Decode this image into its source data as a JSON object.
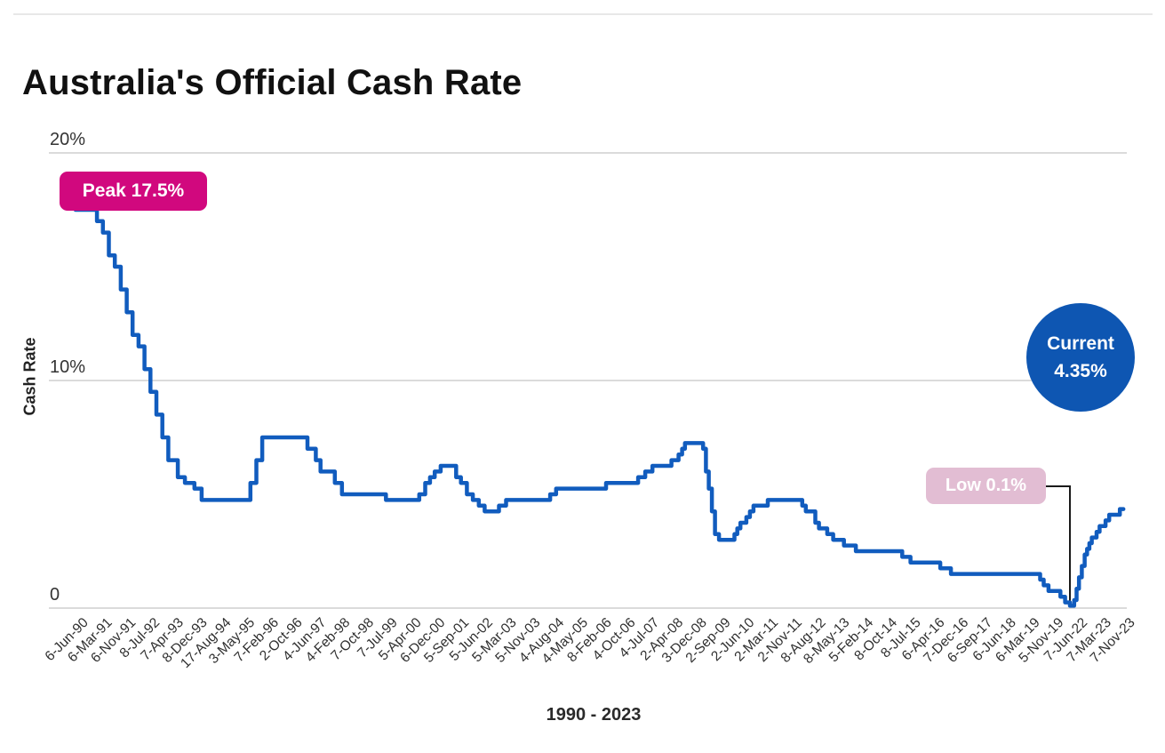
{
  "header": {
    "title": "Australia's Official Cash Rate"
  },
  "chart_data": {
    "type": "line",
    "title": "Australia's Official Cash Rate",
    "xlabel": "1990 - 2023",
    "ylabel": "Cash Rate",
    "ylim": [
      0,
      20
    ],
    "grid": "horizontal",
    "legend": "none",
    "line_color": "#115CBE",
    "gridline_color": "#DBDBDB",
    "yticks": [
      {
        "v": 20,
        "label": "20%"
      },
      {
        "v": 10,
        "label": "10%"
      },
      {
        "v": 0,
        "label": "0"
      }
    ],
    "x_tick_labels": [
      "6-Jun-90",
      "6-Mar-91",
      "6-Nov-91",
      "8-Jul-92",
      "7-Apr-93",
      "8-Dec-93",
      "17-Aug-94",
      "3-May-95",
      "7-Feb-96",
      "2-Oct-96",
      "4-Jun-97",
      "4-Feb-98",
      "7-Oct-98",
      "7-Jul-99",
      "5-Apr-00",
      "6-Dec-00",
      "5-Sep-01",
      "5-Jun-02",
      "5-Mar-03",
      "5-Nov-03",
      "4-Aug-04",
      "4-May-05",
      "8-Feb-06",
      "4-Oct-06",
      "4-Jul-07",
      "2-Apr-08",
      "3-Dec-08",
      "2-Sep-09",
      "2-Jun-10",
      "2-Mar-11",
      "2-Nov-11",
      "8-Aug-12",
      "8-May-13",
      "5-Feb-14",
      "8-Oct-14",
      "8-Jul-15",
      "6-Apr-16",
      "7-Dec-16",
      "6-Sep-17",
      "6-Jun-18",
      "6-Mar-19",
      "5-Nov-19",
      "7-Jun-22",
      "7-Mar-23",
      "7-Nov-23"
    ],
    "x_units": "x-axis tick index (fractional position along date axis)",
    "y_units": "cash rate, percent",
    "points": [
      [
        0,
        17.5
      ],
      [
        0.9,
        17.0
      ],
      [
        1.15,
        16.5
      ],
      [
        1.4,
        15.5
      ],
      [
        1.65,
        15.0
      ],
      [
        1.9,
        14.0
      ],
      [
        2.15,
        13.0
      ],
      [
        2.4,
        12.0
      ],
      [
        2.65,
        11.5
      ],
      [
        2.9,
        10.5
      ],
      [
        3.15,
        9.5
      ],
      [
        3.4,
        8.5
      ],
      [
        3.65,
        7.5
      ],
      [
        3.9,
        6.5
      ],
      [
        4.3,
        5.75
      ],
      [
        4.6,
        5.5
      ],
      [
        5.0,
        5.25
      ],
      [
        5.3,
        4.75
      ],
      [
        7.35,
        5.5
      ],
      [
        7.6,
        6.5
      ],
      [
        7.85,
        7.5
      ],
      [
        9.75,
        7.0
      ],
      [
        10.1,
        6.5
      ],
      [
        10.3,
        6.0
      ],
      [
        10.9,
        5.5
      ],
      [
        11.2,
        5.0
      ],
      [
        13.05,
        4.75
      ],
      [
        14.45,
        5.0
      ],
      [
        14.7,
        5.5
      ],
      [
        14.9,
        5.75
      ],
      [
        15.1,
        6.0
      ],
      [
        15.35,
        6.25
      ],
      [
        16.0,
        5.75
      ],
      [
        16.2,
        5.5
      ],
      [
        16.45,
        5.0
      ],
      [
        16.7,
        4.75
      ],
      [
        16.95,
        4.5
      ],
      [
        17.2,
        4.25
      ],
      [
        17.8,
        4.5
      ],
      [
        18.1,
        4.75
      ],
      [
        19.95,
        5.0
      ],
      [
        20.2,
        5.25
      ],
      [
        22.3,
        5.5
      ],
      [
        23.65,
        5.75
      ],
      [
        23.95,
        6.0
      ],
      [
        24.25,
        6.25
      ],
      [
        25.05,
        6.5
      ],
      [
        25.35,
        6.75
      ],
      [
        25.5,
        7.0
      ],
      [
        25.62,
        7.25
      ],
      [
        26.38,
        7.0
      ],
      [
        26.5,
        6.0
      ],
      [
        26.62,
        5.25
      ],
      [
        26.75,
        4.25
      ],
      [
        26.88,
        3.25
      ],
      [
        27.05,
        3.0
      ],
      [
        27.7,
        3.25
      ],
      [
        27.82,
        3.5
      ],
      [
        27.95,
        3.75
      ],
      [
        28.2,
        4.0
      ],
      [
        28.35,
        4.25
      ],
      [
        28.5,
        4.5
      ],
      [
        29.1,
        4.75
      ],
      [
        30.55,
        4.5
      ],
      [
        30.7,
        4.25
      ],
      [
        31.1,
        3.75
      ],
      [
        31.25,
        3.5
      ],
      [
        31.6,
        3.25
      ],
      [
        31.85,
        3.0
      ],
      [
        32.3,
        2.75
      ],
      [
        32.8,
        2.5
      ],
      [
        34.75,
        2.25
      ],
      [
        35.1,
        2.0
      ],
      [
        36.35,
        1.75
      ],
      [
        36.8,
        1.5
      ],
      [
        40.55,
        1.25
      ],
      [
        40.7,
        1.0
      ],
      [
        40.9,
        0.75
      ],
      [
        41.4,
        0.5
      ],
      [
        41.6,
        0.25
      ],
      [
        41.8,
        0.1
      ],
      [
        41.98,
        0.35
      ],
      [
        42.08,
        0.85
      ],
      [
        42.18,
        1.35
      ],
      [
        42.3,
        1.85
      ],
      [
        42.42,
        2.35
      ],
      [
        42.52,
        2.6
      ],
      [
        42.62,
        2.85
      ],
      [
        42.72,
        3.1
      ],
      [
        42.92,
        3.35
      ],
      [
        43.05,
        3.6
      ],
      [
        43.3,
        3.85
      ],
      [
        43.45,
        4.1
      ],
      [
        43.9,
        4.35
      ]
    ],
    "annotations": {
      "peak": {
        "label": "Peak 17.5%",
        "value": 17.5,
        "bg": "#D1087E",
        "text_color": "#FFFFFF"
      },
      "low": {
        "label": "Low 0.1%",
        "value": 0.1,
        "bg": "#E2BDD3",
        "text_color": "#FFFFFF"
      },
      "current": {
        "label_line1": "Current",
        "label_line2": "4.35%",
        "value": 4.35,
        "bg": "#0E56B2",
        "text_color": "#FFFFFF"
      }
    }
  }
}
